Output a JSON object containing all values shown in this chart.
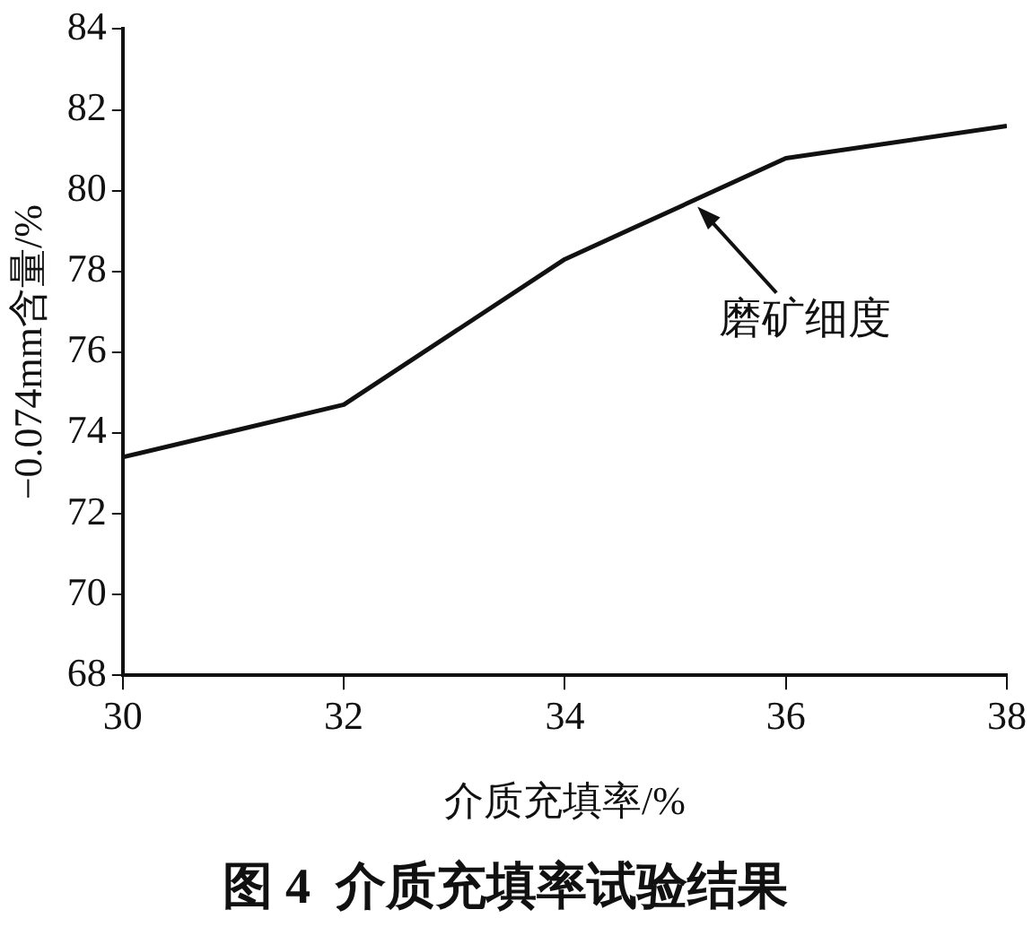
{
  "chart_data": {
    "type": "line",
    "title": "图 4  介质充填率试验结果",
    "xlabel": "介质充填率/%",
    "ylabel": "−0.074mm含量/%",
    "x": [
      30,
      32,
      34,
      36,
      38
    ],
    "series": [
      {
        "color": "#111111",
        "values": [
          73.4,
          74.7,
          78.3,
          80.8,
          81.6
        ]
      }
    ],
    "xlim": [
      30,
      38
    ],
    "xticks": [
      30,
      32,
      34,
      36,
      38
    ],
    "ylim": [
      68,
      84
    ],
    "yticks": [
      68,
      70,
      72,
      74,
      76,
      78,
      80,
      82,
      84
    ],
    "annotations": [
      {
        "text": "磨矿细度",
        "x": 35.2,
        "y": 79.6
      }
    ],
    "grid": false,
    "legend": false,
    "marker": "none",
    "line_style": "solid"
  }
}
